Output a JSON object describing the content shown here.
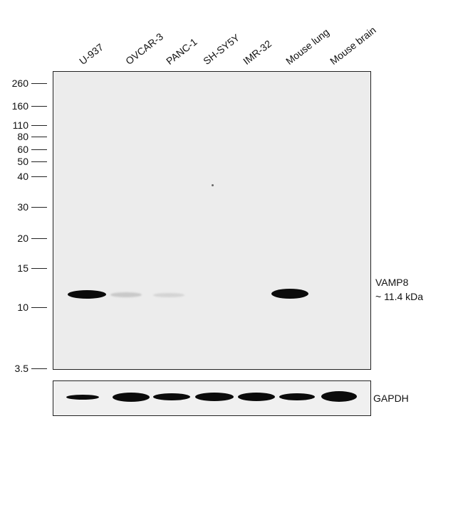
{
  "lanes": [
    "U-937",
    "OVCAR-3",
    "PANC-1",
    "SH-SY5Y",
    "IMR-32",
    "Mouse lung",
    "Mouse brain"
  ],
  "markers": [
    "260",
    "160",
    "110",
    "80",
    "60",
    "50",
    "40",
    "30",
    "20",
    "15",
    "10",
    "3.5"
  ],
  "target": {
    "name": "VAMP8",
    "size": "~ 11.4 kDa"
  },
  "loading_control": "GAPDH"
}
